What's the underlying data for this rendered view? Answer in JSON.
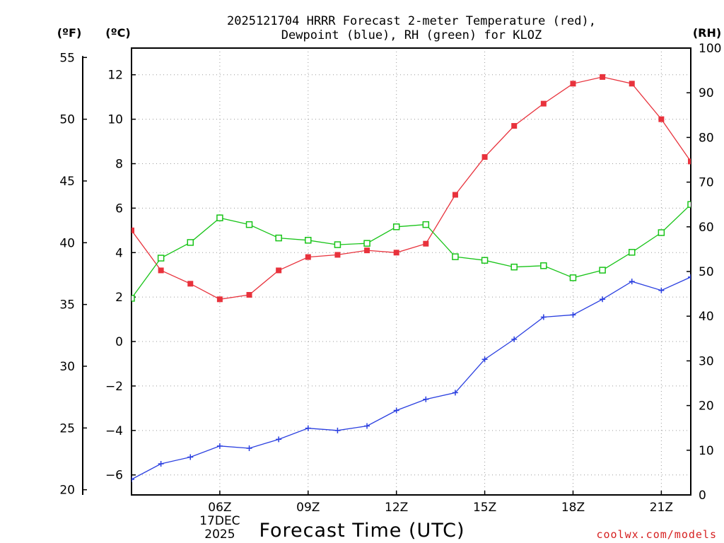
{
  "chart_data": {
    "type": "line",
    "title_line1": "2025121704 HRRR Forecast 2-meter Temperature (red),",
    "title_line2": "Dewpoint (blue), RH (green) for KLOZ",
    "xlabel": "Forecast Time (UTC)",
    "credit": "coolwx.com/models",
    "unit_f": "(ºF)",
    "unit_c": "(ºC)",
    "unit_rh": "(RH)",
    "x_hours": [
      3,
      4,
      5,
      6,
      7,
      8,
      9,
      10,
      11,
      12,
      13,
      14,
      15,
      16,
      17,
      18,
      19,
      20,
      21,
      22
    ],
    "xlim": [
      3,
      22
    ],
    "x_ticks": [
      {
        "hour": 6,
        "label": "06Z",
        "label2": "17DEC",
        "label3": "2025"
      },
      {
        "hour": 9,
        "label": "09Z"
      },
      {
        "hour": 12,
        "label": "12Z"
      },
      {
        "hour": 15,
        "label": "15Z"
      },
      {
        "hour": 18,
        "label": "18Z"
      },
      {
        "hour": 21,
        "label": "21Z"
      }
    ],
    "ylim_c": [
      -6.9,
      13.2
    ],
    "y_ticks_c": [
      -6,
      -4,
      -2,
      0,
      2,
      4,
      6,
      8,
      10,
      12
    ],
    "y_ticks_f": [
      20,
      25,
      30,
      35,
      40,
      45,
      50,
      55
    ],
    "ylim_rh": [
      0,
      100
    ],
    "y_ticks_rh": [
      0,
      10,
      20,
      30,
      40,
      50,
      60,
      70,
      80,
      90,
      100
    ],
    "colors": {
      "temperature": "#e8323c",
      "dewpoint": "#2a3fe0",
      "rh": "#19c419"
    },
    "series": [
      {
        "name": "Temperature",
        "axis": "c",
        "marker": "filled-square",
        "values": [
          5.0,
          3.2,
          2.6,
          1.9,
          2.1,
          3.2,
          3.8,
          3.9,
          4.1,
          4.0,
          4.4,
          6.6,
          8.3,
          9.7,
          10.7,
          11.6,
          11.9,
          11.6,
          10.0,
          8.1
        ]
      },
      {
        "name": "Dewpoint",
        "axis": "c",
        "marker": "plus",
        "values": [
          -6.2,
          -5.5,
          -5.2,
          -4.7,
          -4.8,
          -4.4,
          -3.9,
          -4.0,
          -3.8,
          -3.1,
          -2.6,
          -2.3,
          -0.8,
          0.1,
          1.1,
          1.2,
          1.9,
          2.7,
          2.3,
          2.9
        ]
      },
      {
        "name": "RH",
        "axis": "rh",
        "marker": "open-square",
        "values": [
          44,
          53,
          56.5,
          62,
          60.5,
          57.5,
          57,
          56,
          56.3,
          60,
          60.5,
          53.3,
          52.5,
          51,
          51.3,
          48.6,
          50.3,
          54.3,
          58.7,
          65
        ]
      }
    ]
  }
}
